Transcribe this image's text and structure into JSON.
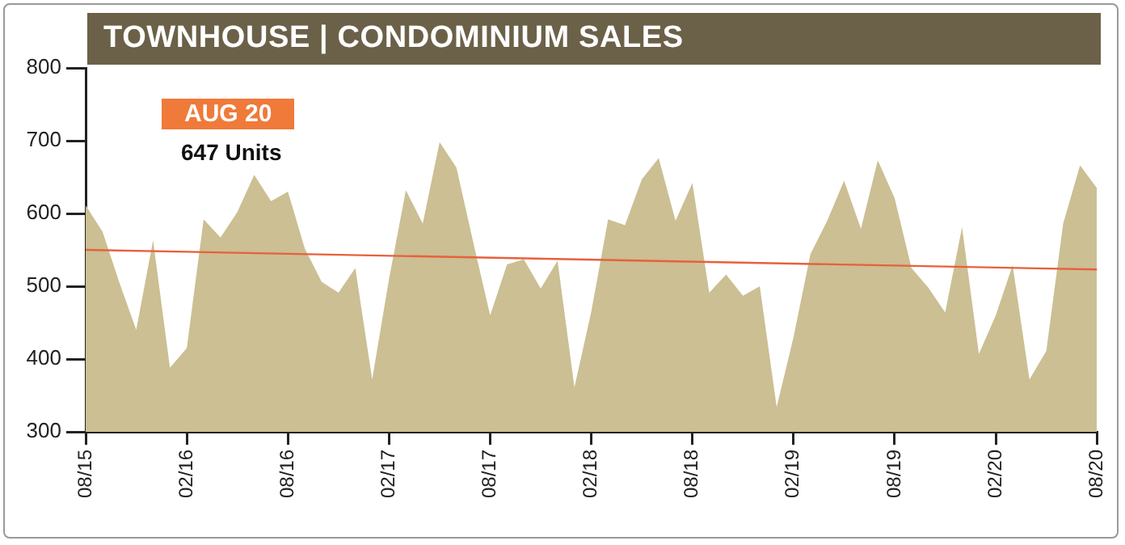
{
  "chart_data": {
    "type": "area",
    "title": "TOWNHOUSE | CONDOMINIUM SALES",
    "annotations": [
      "AUG 20",
      "647 Units"
    ],
    "categories": [
      "08/15",
      null,
      null,
      null,
      null,
      null,
      "02/16",
      null,
      null,
      null,
      null,
      null,
      "08/16",
      null,
      null,
      null,
      null,
      null,
      "02/17",
      null,
      null,
      null,
      null,
      null,
      "08/17",
      null,
      null,
      null,
      null,
      null,
      "02/18",
      null,
      null,
      null,
      null,
      null,
      "08/18",
      null,
      null,
      null,
      null,
      null,
      "02/19",
      null,
      null,
      null,
      null,
      null,
      "08/19",
      null,
      null,
      null,
      null,
      null,
      "02/20",
      null,
      null,
      null,
      null,
      null,
      "08/20"
    ],
    "series": [
      {
        "color": "#cbbf93",
        "values": [
          611,
          575,
          505,
          440,
          563,
          388,
          415,
          592,
          567,
          602,
          653,
          617,
          630,
          552,
          506,
          491,
          525,
          372,
          510,
          632,
          586,
          698,
          663,
          560,
          460,
          530,
          537,
          497,
          535,
          361,
          465,
          592,
          584,
          647,
          676,
          590,
          642,
          491,
          516,
          487,
          500,
          334,
          430,
          544,
          590,
          645,
          579,
          673,
          621,
          525,
          498,
          464,
          581,
          407,
          460,
          529,
          372,
          411,
          586,
          666,
          635
        ]
      },
      {
        "type": "line",
        "color": "#e8603c",
        "values": [
          550,
          null,
          null,
          null,
          null,
          null,
          null,
          null,
          null,
          null,
          null,
          null,
          null,
          null,
          null,
          null,
          null,
          null,
          null,
          null,
          null,
          null,
          null,
          null,
          null,
          null,
          null,
          null,
          null,
          null,
          null,
          null,
          null,
          null,
          null,
          null,
          null,
          null,
          null,
          null,
          null,
          null,
          null,
          null,
          null,
          null,
          null,
          null,
          null,
          null,
          null,
          null,
          null,
          null,
          null,
          null,
          null,
          null,
          null,
          null,
          523
        ]
      }
    ],
    "ylim": [
      300,
      800
    ],
    "yticks": [
      300,
      400,
      500,
      600,
      700,
      800
    ],
    "grid": false,
    "legend": false
  }
}
